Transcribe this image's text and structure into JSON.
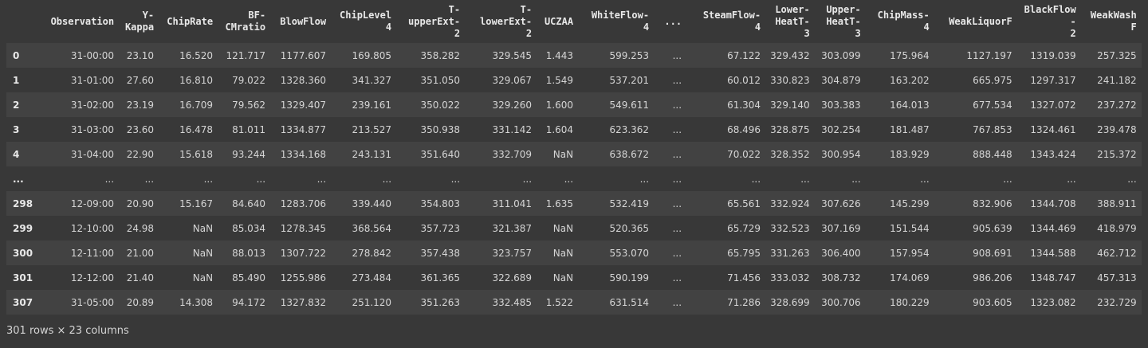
{
  "table": {
    "index_header": "",
    "columns": [
      [
        "Observation"
      ],
      [
        "Y-",
        "Kappa"
      ],
      [
        "ChipRate"
      ],
      [
        "BF-",
        "CMratio"
      ],
      [
        "BlowFlow"
      ],
      [
        "ChipLevel4"
      ],
      [
        "T-",
        "upperExt-",
        "2"
      ],
      [
        "T-",
        "lowerExt-",
        "2"
      ],
      [
        "UCZAA"
      ],
      [
        "WhiteFlow-",
        "4"
      ],
      [
        "..."
      ],
      [
        "SteamFlow-",
        "4"
      ],
      [
        "Lower-",
        "HeatT-",
        "3"
      ],
      [
        "Upper-",
        "HeatT-",
        "3"
      ],
      [
        "ChipMass-",
        "4"
      ],
      [
        "WeakLiquorF"
      ],
      [
        "BlackFlow-",
        "2"
      ],
      [
        "WeakWashF"
      ]
    ],
    "rows": [
      {
        "index": "0",
        "cells": [
          "31-00:00",
          "23.10",
          "16.520",
          "121.717",
          "1177.607",
          "169.805",
          "358.282",
          "329.545",
          "1.443",
          "599.253",
          "...",
          "67.122",
          "329.432",
          "303.099",
          "175.964",
          "1127.197",
          "1319.039",
          "257.325"
        ]
      },
      {
        "index": "1",
        "cells": [
          "31-01:00",
          "27.60",
          "16.810",
          "79.022",
          "1328.360",
          "341.327",
          "351.050",
          "329.067",
          "1.549",
          "537.201",
          "...",
          "60.012",
          "330.823",
          "304.879",
          "163.202",
          "665.975",
          "1297.317",
          "241.182"
        ]
      },
      {
        "index": "2",
        "cells": [
          "31-02:00",
          "23.19",
          "16.709",
          "79.562",
          "1329.407",
          "239.161",
          "350.022",
          "329.260",
          "1.600",
          "549.611",
          "...",
          "61.304",
          "329.140",
          "303.383",
          "164.013",
          "677.534",
          "1327.072",
          "237.272"
        ]
      },
      {
        "index": "3",
        "cells": [
          "31-03:00",
          "23.60",
          "16.478",
          "81.011",
          "1334.877",
          "213.527",
          "350.938",
          "331.142",
          "1.604",
          "623.362",
          "...",
          "68.496",
          "328.875",
          "302.254",
          "181.487",
          "767.853",
          "1324.461",
          "239.478"
        ]
      },
      {
        "index": "4",
        "cells": [
          "31-04:00",
          "22.90",
          "15.618",
          "93.244",
          "1334.168",
          "243.131",
          "351.640",
          "332.709",
          "NaN",
          "638.672",
          "...",
          "70.022",
          "328.352",
          "300.954",
          "183.929",
          "888.448",
          "1343.424",
          "215.372"
        ]
      },
      {
        "index": "...",
        "cells": [
          "...",
          "...",
          "...",
          "...",
          "...",
          "...",
          "...",
          "...",
          "...",
          "...",
          "...",
          "...",
          "...",
          "...",
          "...",
          "...",
          "...",
          "..."
        ]
      },
      {
        "index": "298",
        "cells": [
          "12-09:00",
          "20.90",
          "15.167",
          "84.640",
          "1283.706",
          "339.440",
          "354.803",
          "311.041",
          "1.635",
          "532.419",
          "...",
          "65.561",
          "332.924",
          "307.626",
          "145.299",
          "832.906",
          "1344.708",
          "388.911"
        ]
      },
      {
        "index": "299",
        "cells": [
          "12-10:00",
          "24.98",
          "NaN",
          "85.034",
          "1278.345",
          "368.564",
          "357.723",
          "321.387",
          "NaN",
          "520.365",
          "...",
          "65.729",
          "332.523",
          "307.169",
          "151.544",
          "905.639",
          "1344.469",
          "418.979"
        ]
      },
      {
        "index": "300",
        "cells": [
          "12-11:00",
          "21.00",
          "NaN",
          "88.013",
          "1307.722",
          "278.842",
          "357.438",
          "323.757",
          "NaN",
          "553.070",
          "...",
          "65.795",
          "331.263",
          "306.400",
          "157.954",
          "908.691",
          "1344.588",
          "462.712"
        ]
      },
      {
        "index": "301",
        "cells": [
          "12-12:00",
          "21.40",
          "NaN",
          "85.490",
          "1255.986",
          "273.484",
          "361.365",
          "322.689",
          "NaN",
          "590.199",
          "...",
          "71.456",
          "333.032",
          "308.732",
          "174.069",
          "986.206",
          "1348.747",
          "457.313"
        ]
      },
      {
        "index": "307",
        "cells": [
          "31-05:00",
          "20.89",
          "14.308",
          "94.172",
          "1327.832",
          "251.120",
          "351.263",
          "332.485",
          "1.522",
          "631.514",
          "...",
          "71.286",
          "328.699",
          "300.706",
          "180.229",
          "903.605",
          "1323.082",
          "232.729"
        ]
      }
    ]
  },
  "footer": {
    "summary": "301 rows × 23 columns"
  }
}
